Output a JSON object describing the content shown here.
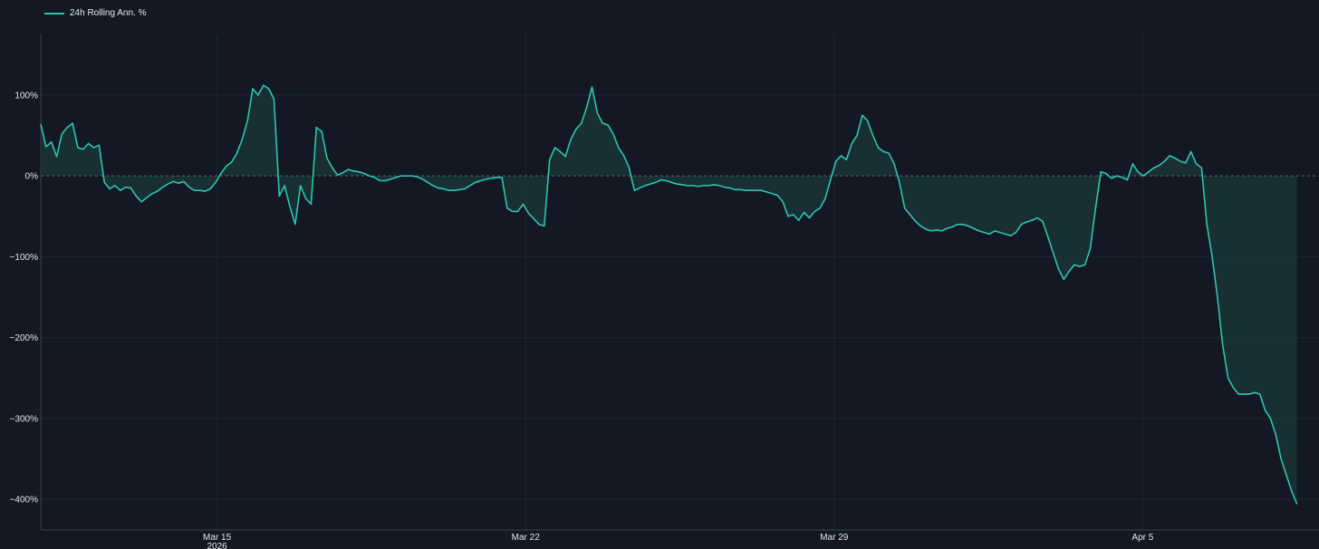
{
  "legend": {
    "label": "24h Rolling Ann. %"
  },
  "chart_data": {
    "type": "area",
    "title": "",
    "xlabel": "",
    "ylabel": "",
    "x_start": "2026-03-11",
    "x_end": "2026-04-08 12:00",
    "xlim": [
      "2026-03-11",
      "2026-04-09"
    ],
    "ylim": [
      -438,
      175
    ],
    "grid": true,
    "legend_position": "top-left",
    "colors": {
      "line": "#2ec4b0",
      "fill": "#1a3235",
      "zero_line": "#5a6170",
      "grid": "#1f2633",
      "background": "#131824"
    },
    "y_ticks": [
      100,
      0,
      -100,
      -200,
      -300,
      -400
    ],
    "y_tick_labels": [
      "100%",
      "0%",
      "−100%",
      "−200%",
      "−300%",
      "−400%"
    ],
    "x_ticks": [
      "2026-03-15",
      "2026-03-22",
      "2026-03-29",
      "2026-04-05"
    ],
    "x_tick_labels": [
      "Mar 15",
      "Mar 22",
      "Mar 29",
      "Apr 5"
    ],
    "x_year_label": "2026",
    "series": [
      {
        "name": "24h Rolling Ann. %",
        "values": [
          64,
          36,
          42,
          24,
          52,
          60,
          65,
          35,
          33,
          40,
          35,
          38,
          -8,
          -16,
          -12,
          -18,
          -14,
          -15,
          -25,
          -32,
          -27,
          -22,
          -19,
          -14,
          -10,
          -7,
          -9,
          -7,
          -14,
          -18,
          -18,
          -19,
          -16,
          -8,
          3,
          12,
          17,
          28,
          45,
          68,
          108,
          100,
          112,
          108,
          95,
          -25,
          -12,
          -38,
          -60,
          -12,
          -28,
          -35,
          60,
          55,
          22,
          10,
          1,
          4,
          8,
          6,
          5,
          3,
          0,
          -2,
          -6,
          -6,
          -4,
          -2,
          0,
          0,
          0,
          -1,
          -4,
          -8,
          -12,
          -15,
          -16,
          -18,
          -18,
          -17,
          -16,
          -12,
          -8,
          -6,
          -4,
          -3,
          -2,
          -2,
          -40,
          -44,
          -44,
          -35,
          -46,
          -53,
          -60,
          -62,
          20,
          35,
          30,
          24,
          45,
          58,
          65,
          85,
          110,
          78,
          65,
          63,
          52,
          35,
          25,
          10,
          -18,
          -15,
          -12,
          -10,
          -8,
          -5,
          -6,
          -8,
          -10,
          -11,
          -12,
          -12,
          -13,
          -12,
          -12,
          -11,
          -12,
          -14,
          -15,
          -17,
          -17,
          -18,
          -18,
          -18,
          -18,
          -20,
          -22,
          -24,
          -32,
          -50,
          -48,
          -55,
          -45,
          -52,
          -44,
          -40,
          -28,
          -5,
          18,
          25,
          20,
          40,
          50,
          75,
          68,
          50,
          35,
          30,
          28,
          15,
          -8,
          -40,
          -48,
          -56,
          -62,
          -66,
          -68,
          -67,
          -68,
          -65,
          -63,
          -60,
          -60,
          -62,
          -65,
          -68,
          -70,
          -72,
          -68,
          -70,
          -72,
          -74,
          -70,
          -60,
          -57,
          -55,
          -52,
          -56,
          -75,
          -95,
          -115,
          -128,
          -118,
          -110,
          -112,
          -110,
          -90,
          -40,
          5,
          3,
          -3,
          0,
          -2,
          -5,
          15,
          5,
          0,
          5,
          10,
          13,
          18,
          25,
          22,
          18,
          16,
          30,
          15,
          10,
          -60,
          -100,
          -150,
          -210,
          -250,
          -262,
          -270,
          -270,
          -270,
          -268,
          -270,
          -290,
          -300,
          -320,
          -350,
          -370,
          -390,
          -406
        ]
      }
    ]
  }
}
